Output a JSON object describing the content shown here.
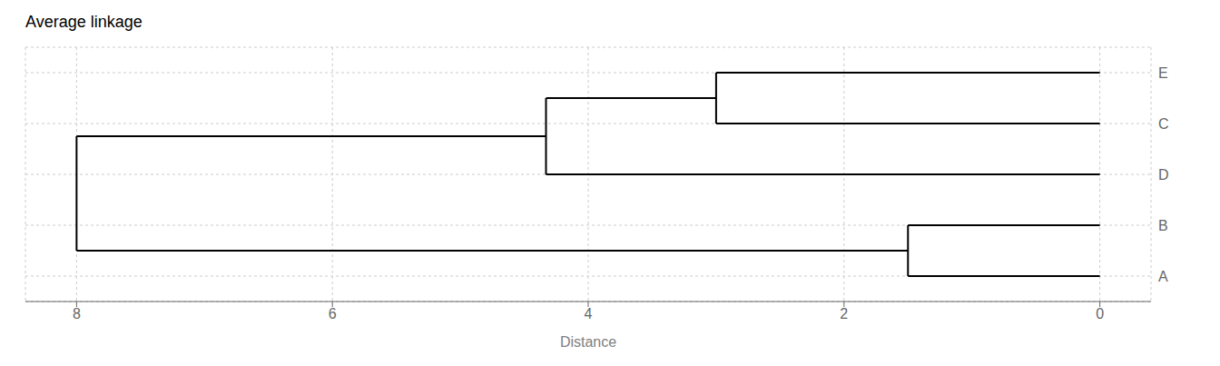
{
  "chart_data": {
    "type": "dendrogram",
    "title": "Average linkage",
    "xlabel": "Distance",
    "leaves": [
      "E",
      "C",
      "D",
      "B",
      "A"
    ],
    "merges": [
      {
        "members": [
          "E",
          "C"
        ],
        "distance": 3.0
      },
      {
        "members": [
          "E",
          "C",
          "D"
        ],
        "distance": 4.33
      },
      {
        "members": [
          "B",
          "A"
        ],
        "distance": 1.5
      },
      {
        "members": [
          "E",
          "C",
          "D",
          "B",
          "A"
        ],
        "distance": 8.0
      }
    ],
    "color": "black",
    "xlim": [
      8.4,
      -0.4
    ],
    "xticks": [
      8,
      6,
      4,
      2,
      0
    ],
    "grid": true
  }
}
